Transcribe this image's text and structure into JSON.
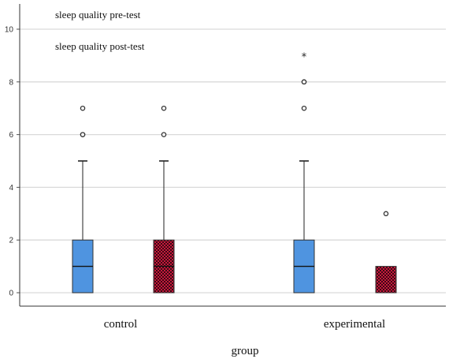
{
  "chart_data": {
    "type": "boxplot",
    "title": "",
    "xlabel": "group",
    "ylabel": "",
    "ylim": [
      0,
      10
    ],
    "yticks": [
      0,
      2,
      4,
      6,
      8,
      10
    ],
    "grid": true,
    "categories": [
      "control",
      "experimental"
    ],
    "legend": [
      "sleep quality pre-test",
      "sleep quality post-test"
    ],
    "colors": {
      "pre": "#4f94e0",
      "post": "#c8183c"
    },
    "series": [
      {
        "name": "sleep quality pre-test",
        "color": "#4f94e0",
        "pattern": "solid",
        "boxes": [
          {
            "category": "control",
            "min": 0,
            "q1": 0,
            "median": 1,
            "q3": 2,
            "max": 5,
            "outliers": [
              6,
              6,
              7
            ],
            "extremes": []
          },
          {
            "category": "experimental",
            "min": 0,
            "q1": 0,
            "median": 1,
            "q3": 2,
            "max": 5,
            "outliers": [
              7,
              8,
              8
            ],
            "extremes": [
              9
            ]
          }
        ]
      },
      {
        "name": "sleep quality post-test",
        "color": "#c8183c",
        "pattern": "checkered",
        "boxes": [
          {
            "category": "control",
            "min": 0,
            "q1": 0,
            "median": 1,
            "q3": 2,
            "max": 5,
            "outliers": [
              6,
              7
            ],
            "extremes": []
          },
          {
            "category": "experimental",
            "min": 0,
            "q1": 0,
            "median": 1,
            "q3": 1,
            "max": 1,
            "outliers": [
              3
            ],
            "extremes": []
          }
        ]
      }
    ]
  }
}
